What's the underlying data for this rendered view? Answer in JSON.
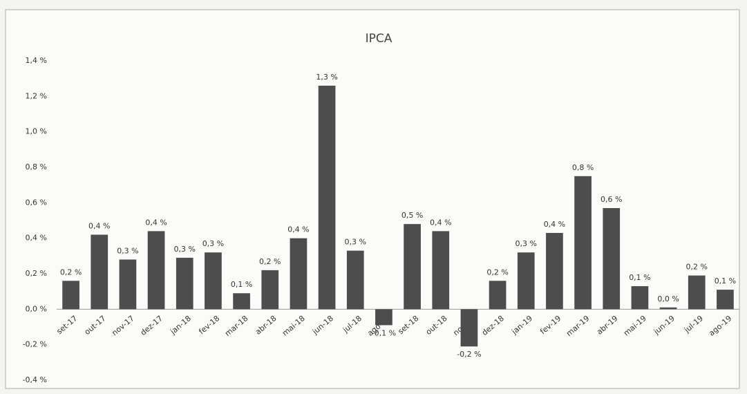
{
  "chart_data": {
    "type": "bar",
    "title": "IPCA",
    "categories": [
      "set-17",
      "out-17",
      "nov-17",
      "dez-17",
      "jan-18",
      "fev-18",
      "mar-18",
      "abr-18",
      "mai-18",
      "jun-18",
      "jul-18",
      "ago-18",
      "set-18",
      "out-18",
      "nov-18",
      "dez-18",
      "jan-19",
      "fev-19",
      "mar-19",
      "abr-19",
      "mai-19",
      "jun-19",
      "jul-19",
      "ago-19"
    ],
    "values": [
      0.16,
      0.42,
      0.28,
      0.44,
      0.29,
      0.32,
      0.09,
      0.22,
      0.4,
      1.26,
      0.33,
      -0.09,
      0.48,
      0.44,
      -0.21,
      0.16,
      0.32,
      0.43,
      0.75,
      0.57,
      0.13,
      0.01,
      0.19,
      0.11
    ],
    "value_labels": [
      "0,2 %",
      "0,4 %",
      "0,3 %",
      "0,4 %",
      "0,3 %",
      "0,3 %",
      "0,1 %",
      "0,2 %",
      "0,4 %",
      "1,3 %",
      "0,3 %",
      "-0,1 %",
      "0,5 %",
      "0,4 %",
      "-0,2 %",
      "0,2 %",
      "0,3 %",
      "0,4 %",
      "0,8 %",
      "0,6 %",
      "0,1 %",
      "0,0 %",
      "0,2 %",
      "0,1 %"
    ],
    "color": "#4d4d4d",
    "ylim": [
      -0.4,
      1.4
    ],
    "yticks": [
      {
        "value": -0.4,
        "label": "-0,4 %"
      },
      {
        "value": -0.2,
        "label": "-0,2 %"
      },
      {
        "value": 0,
        "label": "0,0 %"
      },
      {
        "value": 0.2,
        "label": "0,2 %"
      },
      {
        "value": 0.4,
        "label": "0,4 %"
      },
      {
        "value": 0.6,
        "label": "0,6 %"
      },
      {
        "value": 0.8,
        "label": "0,8 %"
      },
      {
        "value": 1.0,
        "label": "1,0 %"
      },
      {
        "value": 1.2,
        "label": "1,2 %"
      },
      {
        "value": 1.4,
        "label": "1,4 %"
      }
    ],
    "grid": false
  }
}
